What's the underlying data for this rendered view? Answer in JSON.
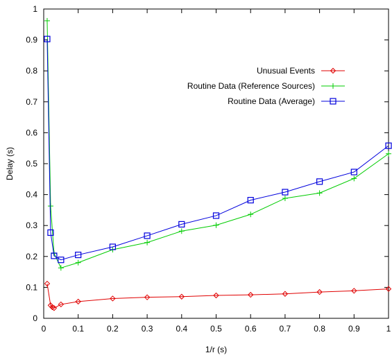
{
  "chart_data": {
    "type": "line",
    "xlabel": "1/r (s)",
    "ylabel": "Delay (s)",
    "xlim": [
      0,
      1
    ],
    "ylim": [
      0,
      1
    ],
    "xticks": [
      "0",
      "0.1",
      "0.2",
      "0.3",
      "0.4",
      "0.5",
      "0.6",
      "0.7",
      "0.8",
      "0.9",
      "1"
    ],
    "yticks": [
      "0",
      "0.1",
      "0.2",
      "0.3",
      "0.4",
      "0.5",
      "0.6",
      "0.7",
      "0.8",
      "0.9",
      "1"
    ],
    "grid": false,
    "legend_position": "top-right",
    "series": [
      {
        "name": "Unusual Events",
        "color": "#e00000",
        "marker": "diamond",
        "x": [
          0.01,
          0.02,
          0.025,
          0.03,
          0.05,
          0.1,
          0.2,
          0.3,
          0.4,
          0.5,
          0.6,
          0.7,
          0.8,
          0.9,
          1.0
        ],
        "y": [
          0.112,
          0.042,
          0.036,
          0.033,
          0.045,
          0.054,
          0.064,
          0.068,
          0.07,
          0.074,
          0.076,
          0.079,
          0.085,
          0.089,
          0.095
        ]
      },
      {
        "name": "Routine Data (Reference Sources)",
        "color": "#00cc00",
        "marker": "plus",
        "x": [
          0.01,
          0.02,
          0.03,
          0.05,
          0.1,
          0.2,
          0.3,
          0.4,
          0.5,
          0.6,
          0.7,
          0.8,
          0.9,
          1.0
        ],
        "y": [
          0.962,
          0.363,
          0.21,
          0.163,
          0.18,
          0.222,
          0.245,
          0.282,
          0.301,
          0.336,
          0.388,
          0.405,
          0.452,
          0.532
        ]
      },
      {
        "name": "Routine Data (Average)",
        "color": "#0000dd",
        "marker": "square",
        "x": [
          0.01,
          0.02,
          0.03,
          0.05,
          0.1,
          0.2,
          0.3,
          0.4,
          0.5,
          0.6,
          0.7,
          0.8,
          0.9,
          1.0
        ],
        "y": [
          0.903,
          0.277,
          0.202,
          0.189,
          0.205,
          0.231,
          0.267,
          0.304,
          0.332,
          0.382,
          0.408,
          0.442,
          0.473,
          0.558
        ]
      }
    ]
  }
}
